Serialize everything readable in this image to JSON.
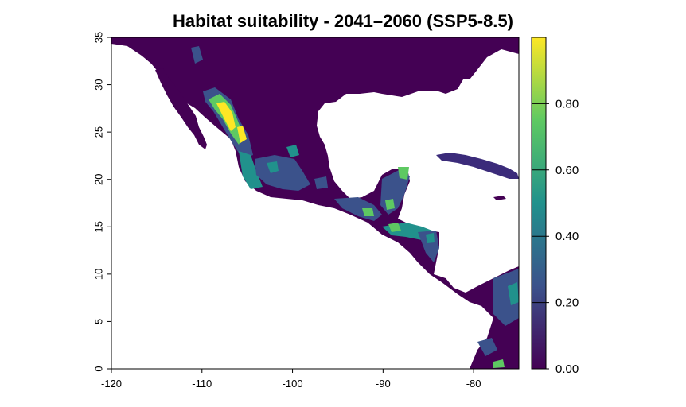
{
  "title": "Habitat suitability - 2041–2060 (SSP5-8.5)",
  "map": {
    "x_ticks": [
      -120,
      -110,
      -100,
      -90,
      -80
    ],
    "y_ticks": [
      0,
      5,
      10,
      15,
      20,
      25,
      30,
      35
    ],
    "xlim": [
      -120,
      -75
    ],
    "ylim": [
      0,
      35
    ],
    "land_color": "#440154",
    "water_color": "#ffffff"
  },
  "colorbar": {
    "ticks": [
      "0.00",
      "0.20",
      "0.40",
      "0.60",
      "0.80"
    ],
    "tick_values": [
      0,
      0.2,
      0.4,
      0.6,
      0.8
    ],
    "range": [
      0,
      1
    ],
    "colors": [
      "#440154",
      "#3b528b",
      "#21918c",
      "#5ec962",
      "#fde725"
    ]
  }
}
